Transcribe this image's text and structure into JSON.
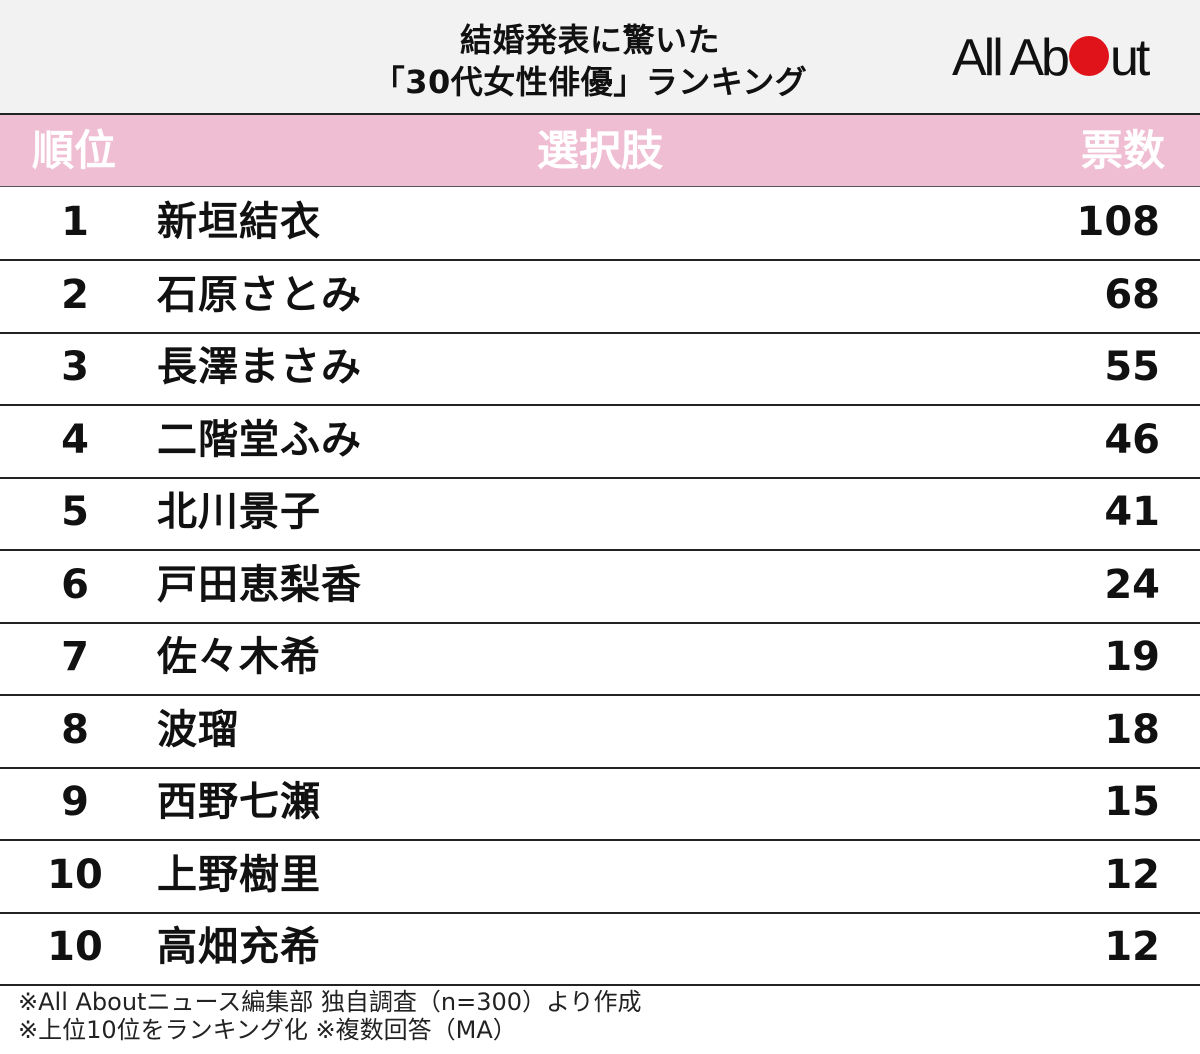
{
  "title": {
    "line1": "結婚発表に驚いた",
    "line2": "「30代女性俳優」ランキング"
  },
  "logo": {
    "left": "All Ab",
    "right": "ut"
  },
  "colors": {
    "header_bg": "#f2f2f2",
    "column_header_bg": "#f0bed2",
    "logo_dot": "#e1131a"
  },
  "chart_data": {
    "type": "table",
    "columns": [
      "順位",
      "選択肢",
      "票数"
    ],
    "rows": [
      {
        "rank": "1",
        "name": "新垣結衣",
        "votes": "108"
      },
      {
        "rank": "2",
        "name": "石原さとみ",
        "votes": "68"
      },
      {
        "rank": "3",
        "name": "長澤まさみ",
        "votes": "55"
      },
      {
        "rank": "4",
        "name": "二階堂ふみ",
        "votes": "46"
      },
      {
        "rank": "5",
        "name": "北川景子",
        "votes": "41"
      },
      {
        "rank": "6",
        "name": "戸田恵梨香",
        "votes": "24"
      },
      {
        "rank": "7",
        "name": "佐々木希",
        "votes": "19"
      },
      {
        "rank": "8",
        "name": "波瑠",
        "votes": "18"
      },
      {
        "rank": "9",
        "name": "西野七瀬",
        "votes": "15"
      },
      {
        "rank": "10",
        "name": "上野樹里",
        "votes": "12"
      },
      {
        "rank": "10",
        "name": "高畑充希",
        "votes": "12"
      }
    ]
  },
  "footnotes": [
    "※All Aboutニュース編集部 独自調査（n=300）より作成",
    "※上位10位をランキング化 ※複数回答（MA）"
  ]
}
